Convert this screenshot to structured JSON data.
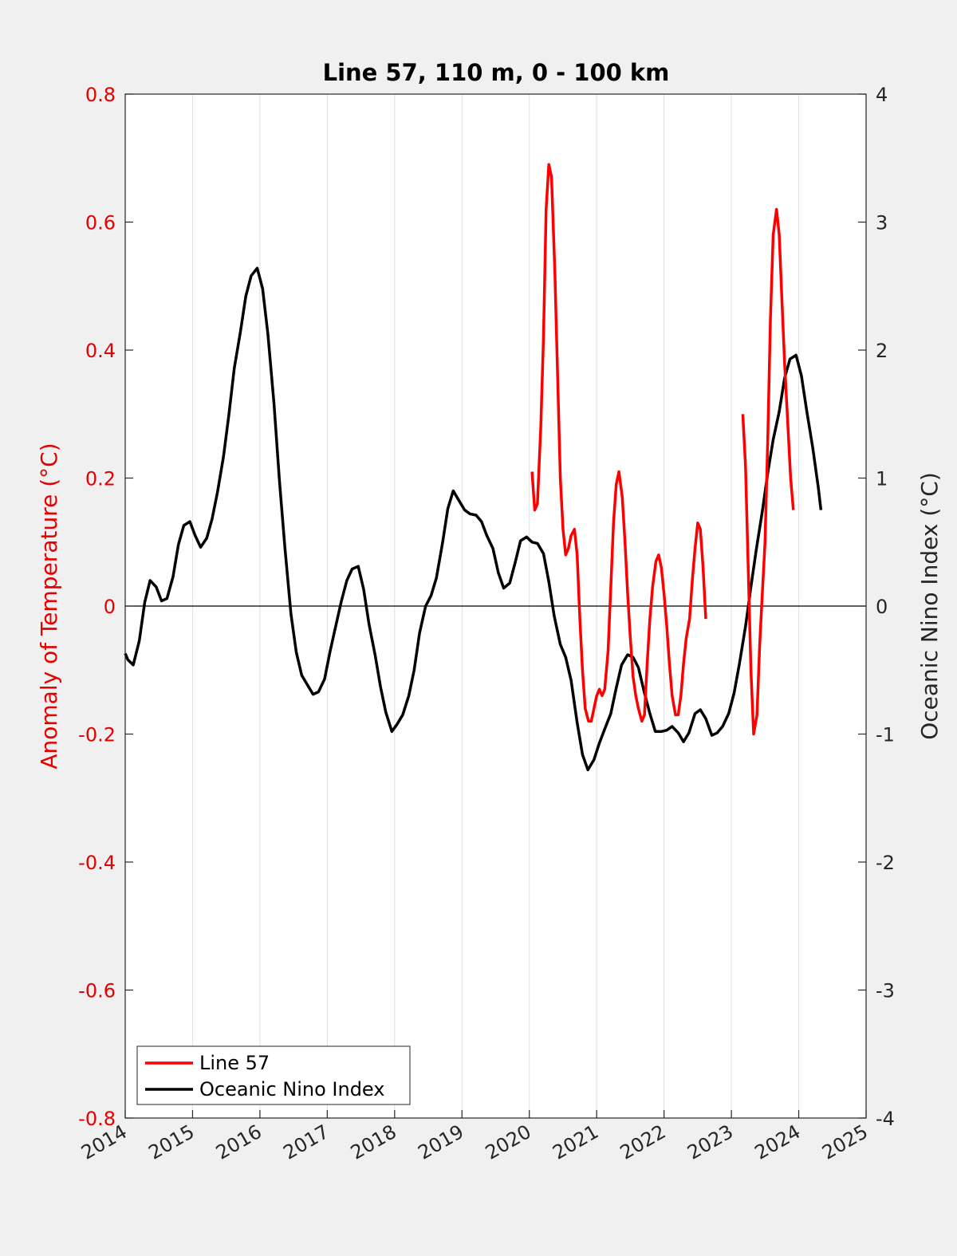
{
  "chart_data": {
    "type": "line",
    "title": "Line 57, 110 m, 0 - 100 km",
    "xlabel": "",
    "ylabel_left": "Anomaly of Temperature (°C)",
    "ylabel_right": "Oceanic Nino Index (°C)",
    "xlim": [
      2014,
      2025
    ],
    "ylim_left": [
      -0.8,
      0.8
    ],
    "ylim_right": [
      -4,
      4
    ],
    "x_ticks": [
      "2014",
      "2015",
      "2016",
      "2017",
      "2018",
      "2019",
      "2020",
      "2021",
      "2022",
      "2023",
      "2024",
      "2025"
    ],
    "y_ticks_left": [
      "-0.8",
      "-0.6",
      "-0.4",
      "-0.2",
      "0",
      "0.2",
      "0.4",
      "0.6",
      "0.8"
    ],
    "y_ticks_right": [
      "-4",
      "-3",
      "-2",
      "-1",
      "0",
      "1",
      "2",
      "3",
      "4"
    ],
    "grid": "vertical",
    "legend_position": "bottom-left",
    "colors": {
      "line57": "#ff0000",
      "oni": "#000000",
      "left_axis": "#e60000",
      "zero_line": "#000000"
    },
    "series": [
      {
        "name": "Line 57",
        "axis": "left",
        "segments": [
          [
            [
              2020.04,
              0.21
            ],
            [
              2020.08,
              0.15
            ],
            [
              2020.12,
              0.16
            ],
            [
              2020.17,
              0.28
            ],
            [
              2020.21,
              0.42
            ],
            [
              2020.25,
              0.62
            ],
            [
              2020.29,
              0.69
            ],
            [
              2020.33,
              0.67
            ],
            [
              2020.38,
              0.52
            ],
            [
              2020.42,
              0.36
            ],
            [
              2020.46,
              0.2
            ],
            [
              2020.5,
              0.12
            ],
            [
              2020.54,
              0.08
            ],
            [
              2020.58,
              0.09
            ],
            [
              2020.62,
              0.11
            ],
            [
              2020.67,
              0.12
            ],
            [
              2020.71,
              0.08
            ],
            [
              2020.75,
              -0.02
            ],
            [
              2020.79,
              -0.1
            ],
            [
              2020.83,
              -0.16
            ],
            [
              2020.88,
              -0.18
            ],
            [
              2020.92,
              -0.18
            ],
            [
              2020.96,
              -0.16
            ],
            [
              2021.0,
              -0.14
            ],
            [
              2021.04,
              -0.13
            ],
            [
              2021.08,
              -0.14
            ],
            [
              2021.12,
              -0.13
            ],
            [
              2021.17,
              -0.07
            ],
            [
              2021.21,
              0.03
            ],
            [
              2021.25,
              0.13
            ],
            [
              2021.29,
              0.19
            ],
            [
              2021.33,
              0.21
            ],
            [
              2021.38,
              0.17
            ],
            [
              2021.42,
              0.1
            ],
            [
              2021.46,
              0.02
            ],
            [
              2021.5,
              -0.05
            ],
            [
              2021.54,
              -0.11
            ],
            [
              2021.58,
              -0.14
            ],
            [
              2021.62,
              -0.16
            ],
            [
              2021.67,
              -0.18
            ],
            [
              2021.71,
              -0.17
            ],
            [
              2021.75,
              -0.09
            ],
            [
              2021.79,
              -0.02
            ],
            [
              2021.83,
              0.03
            ],
            [
              2021.88,
              0.07
            ],
            [
              2021.92,
              0.08
            ],
            [
              2021.96,
              0.06
            ],
            [
              2022.0,
              0.02
            ],
            [
              2022.04,
              -0.03
            ],
            [
              2022.08,
              -0.09
            ],
            [
              2022.12,
              -0.14
            ],
            [
              2022.17,
              -0.17
            ],
            [
              2022.21,
              -0.17
            ],
            [
              2022.25,
              -0.14
            ],
            [
              2022.29,
              -0.09
            ],
            [
              2022.33,
              -0.05
            ],
            [
              2022.38,
              -0.02
            ],
            [
              2022.42,
              0.04
            ],
            [
              2022.46,
              0.09
            ],
            [
              2022.5,
              0.13
            ],
            [
              2022.54,
              0.12
            ],
            [
              2022.58,
              0.06
            ],
            [
              2022.62,
              -0.02
            ]
          ],
          [
            [
              2023.17,
              0.3
            ],
            [
              2023.21,
              0.22
            ],
            [
              2023.25,
              0.06
            ],
            [
              2023.29,
              -0.1
            ],
            [
              2023.33,
              -0.2
            ],
            [
              2023.38,
              -0.17
            ],
            [
              2023.42,
              -0.06
            ],
            [
              2023.46,
              0.02
            ],
            [
              2023.5,
              0.1
            ],
            [
              2023.54,
              0.26
            ],
            [
              2023.58,
              0.45
            ],
            [
              2023.62,
              0.58
            ],
            [
              2023.67,
              0.62
            ],
            [
              2023.71,
              0.58
            ],
            [
              2023.75,
              0.48
            ],
            [
              2023.79,
              0.38
            ],
            [
              2023.83,
              0.3
            ],
            [
              2023.88,
              0.2
            ],
            [
              2023.92,
              0.15
            ]
          ]
        ]
      },
      {
        "name": "Oceanic Nino Index",
        "axis": "right",
        "segments": [
          [
            [
              2014.0,
              -0.37
            ],
            [
              2014.04,
              -0.42
            ],
            [
              2014.12,
              -0.46
            ],
            [
              2014.21,
              -0.27
            ],
            [
              2014.29,
              0.03
            ],
            [
              2014.37,
              0.2
            ],
            [
              2014.46,
              0.15
            ],
            [
              2014.54,
              0.04
            ],
            [
              2014.62,
              0.06
            ],
            [
              2014.71,
              0.23
            ],
            [
              2014.79,
              0.48
            ],
            [
              2014.87,
              0.63
            ],
            [
              2014.96,
              0.66
            ],
            [
              2015.04,
              0.55
            ],
            [
              2015.12,
              0.46
            ],
            [
              2015.21,
              0.53
            ],
            [
              2015.29,
              0.68
            ],
            [
              2015.37,
              0.89
            ],
            [
              2015.46,
              1.17
            ],
            [
              2015.54,
              1.5
            ],
            [
              2015.62,
              1.86
            ],
            [
              2015.71,
              2.14
            ],
            [
              2015.79,
              2.42
            ],
            [
              2015.87,
              2.58
            ],
            [
              2015.96,
              2.64
            ],
            [
              2016.04,
              2.48
            ],
            [
              2016.12,
              2.12
            ],
            [
              2016.21,
              1.58
            ],
            [
              2016.29,
              0.98
            ],
            [
              2016.37,
              0.46
            ],
            [
              2016.46,
              -0.06
            ],
            [
              2016.54,
              -0.36
            ],
            [
              2016.62,
              -0.54
            ],
            [
              2016.71,
              -0.62
            ],
            [
              2016.79,
              -0.69
            ],
            [
              2016.87,
              -0.67
            ],
            [
              2016.96,
              -0.57
            ],
            [
              2017.04,
              -0.36
            ],
            [
              2017.12,
              -0.17
            ],
            [
              2017.21,
              0.04
            ],
            [
              2017.29,
              0.2
            ],
            [
              2017.37,
              0.29
            ],
            [
              2017.46,
              0.31
            ],
            [
              2017.54,
              0.13
            ],
            [
              2017.62,
              -0.14
            ],
            [
              2017.71,
              -0.38
            ],
            [
              2017.79,
              -0.63
            ],
            [
              2017.87,
              -0.83
            ],
            [
              2017.96,
              -0.98
            ],
            [
              2018.04,
              -0.92
            ],
            [
              2018.12,
              -0.85
            ],
            [
              2018.21,
              -0.7
            ],
            [
              2018.29,
              -0.5
            ],
            [
              2018.37,
              -0.21
            ],
            [
              2018.46,
              0.0
            ],
            [
              2018.54,
              0.08
            ],
            [
              2018.62,
              0.22
            ],
            [
              2018.71,
              0.49
            ],
            [
              2018.79,
              0.76
            ],
            [
              2018.87,
              0.9
            ],
            [
              2018.96,
              0.82
            ],
            [
              2019.04,
              0.75
            ],
            [
              2019.12,
              0.72
            ],
            [
              2019.21,
              0.71
            ],
            [
              2019.29,
              0.66
            ],
            [
              2019.37,
              0.55
            ],
            [
              2019.46,
              0.45
            ],
            [
              2019.54,
              0.26
            ],
            [
              2019.62,
              0.14
            ],
            [
              2019.71,
              0.18
            ],
            [
              2019.79,
              0.34
            ],
            [
              2019.87,
              0.51
            ],
            [
              2019.96,
              0.54
            ],
            [
              2020.04,
              0.5
            ],
            [
              2020.12,
              0.49
            ],
            [
              2020.21,
              0.41
            ],
            [
              2020.29,
              0.19
            ],
            [
              2020.37,
              -0.08
            ],
            [
              2020.46,
              -0.3
            ],
            [
              2020.54,
              -0.4
            ],
            [
              2020.62,
              -0.58
            ],
            [
              2020.71,
              -0.91
            ],
            [
              2020.79,
              -1.16
            ],
            [
              2020.87,
              -1.28
            ],
            [
              2020.96,
              -1.2
            ],
            [
              2021.04,
              -1.07
            ],
            [
              2021.12,
              -0.96
            ],
            [
              2021.21,
              -0.84
            ],
            [
              2021.29,
              -0.64
            ],
            [
              2021.37,
              -0.46
            ],
            [
              2021.46,
              -0.38
            ],
            [
              2021.54,
              -0.4
            ],
            [
              2021.62,
              -0.48
            ],
            [
              2021.71,
              -0.68
            ],
            [
              2021.79,
              -0.84
            ],
            [
              2021.87,
              -0.98
            ],
            [
              2021.96,
              -0.98
            ],
            [
              2022.04,
              -0.97
            ],
            [
              2022.12,
              -0.94
            ],
            [
              2022.21,
              -0.99
            ],
            [
              2022.29,
              -1.06
            ],
            [
              2022.37,
              -0.99
            ],
            [
              2022.46,
              -0.84
            ],
            [
              2022.54,
              -0.81
            ],
            [
              2022.62,
              -0.88
            ],
            [
              2022.71,
              -1.01
            ],
            [
              2022.79,
              -0.99
            ],
            [
              2022.87,
              -0.94
            ],
            [
              2022.96,
              -0.84
            ],
            [
              2023.04,
              -0.68
            ],
            [
              2023.12,
              -0.45
            ],
            [
              2023.21,
              -0.16
            ],
            [
              2023.29,
              0.15
            ],
            [
              2023.37,
              0.44
            ],
            [
              2023.46,
              0.74
            ],
            [
              2023.54,
              1.04
            ],
            [
              2023.62,
              1.3
            ],
            [
              2023.71,
              1.52
            ],
            [
              2023.79,
              1.78
            ],
            [
              2023.87,
              1.93
            ],
            [
              2023.96,
              1.96
            ],
            [
              2024.04,
              1.8
            ],
            [
              2024.12,
              1.52
            ],
            [
              2024.21,
              1.23
            ],
            [
              2024.29,
              0.93
            ],
            [
              2024.33,
              0.75
            ]
          ]
        ]
      }
    ]
  }
}
